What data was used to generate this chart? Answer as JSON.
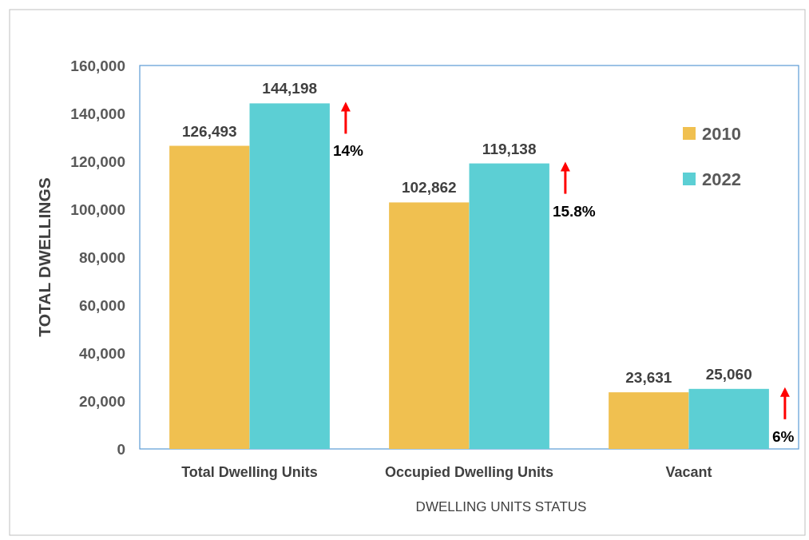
{
  "chart_data": {
    "type": "bar",
    "xlabel": "DWELLING UNITS STATUS",
    "ylabel": "TOTAL DWELLINGS",
    "categories": [
      "Total Dwelling Units",
      "Occupied Dwelling Units",
      "Vacant"
    ],
    "series": [
      {
        "name": "2010",
        "color": "#f0c050",
        "values": [
          126493,
          102862,
          23631
        ],
        "value_labels": [
          "126,493",
          "102,862",
          "23,631"
        ]
      },
      {
        "name": "2022",
        "color": "#5ccfd4",
        "values": [
          144198,
          119138,
          25060
        ],
        "value_labels": [
          "144,198",
          "119,138",
          "25,060"
        ]
      }
    ],
    "ylim": [
      0,
      160000
    ],
    "yticks": [
      {
        "value": 0,
        "label": "0"
      },
      {
        "value": 20000,
        "label": "20,000"
      },
      {
        "value": 40000,
        "label": "40,000"
      },
      {
        "value": 60000,
        "label": "60,000"
      },
      {
        "value": 80000,
        "label": "80,000"
      },
      {
        "value": 100000,
        "label": "100,000"
      },
      {
        "value": 120000,
        "label": "120,000"
      },
      {
        "value": 140000,
        "label": "140,000"
      },
      {
        "value": 160000,
        "label": "160,000"
      }
    ],
    "grid": false,
    "legend": "top right",
    "annotations": [
      "14%",
      "15.8%",
      "6%"
    ]
  }
}
